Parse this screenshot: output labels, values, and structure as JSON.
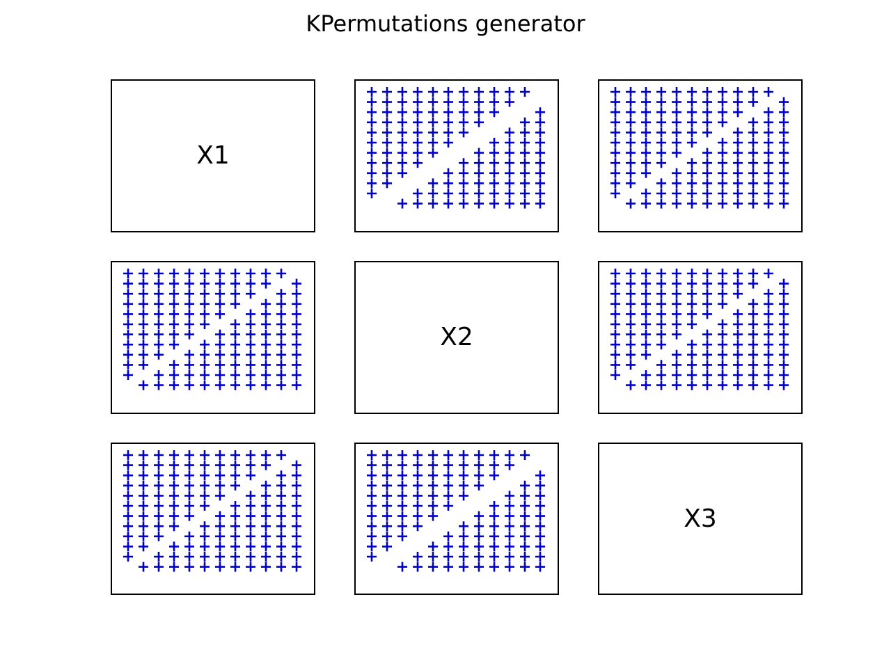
{
  "figure": {
    "title": "KPermutations generator",
    "marker_color": "#0000cc",
    "marker": "plus"
  },
  "chart_data": [
    {
      "type": "scatter",
      "panel": "1,1",
      "label": "X1",
      "points": []
    },
    {
      "type": "scatter",
      "panel": "1,2",
      "label": "",
      "grid_size": 12,
      "diagonal_gap": 2,
      "points_description": "12x12 lattice, cells with col - row == 1 or row - col == 10 omitted"
    },
    {
      "type": "scatter",
      "panel": "1,3",
      "label": "",
      "grid_size": 12,
      "diagonal_gap": 1
    },
    {
      "type": "scatter",
      "panel": "2,1",
      "label": "",
      "grid_size": 12,
      "diagonal_gap": 1
    },
    {
      "type": "scatter",
      "panel": "2,2",
      "label": "X2",
      "points": []
    },
    {
      "type": "scatter",
      "panel": "2,3",
      "label": "",
      "grid_size": 12,
      "diagonal_gap": 1
    },
    {
      "type": "scatter",
      "panel": "3,1",
      "label": "",
      "grid_size": 12,
      "diagonal_gap": 1
    },
    {
      "type": "scatter",
      "panel": "3,2",
      "label": "",
      "grid_size": 12,
      "diagonal_gap": 2
    },
    {
      "type": "scatter",
      "panel": "3,3",
      "label": "X3",
      "points": []
    }
  ]
}
